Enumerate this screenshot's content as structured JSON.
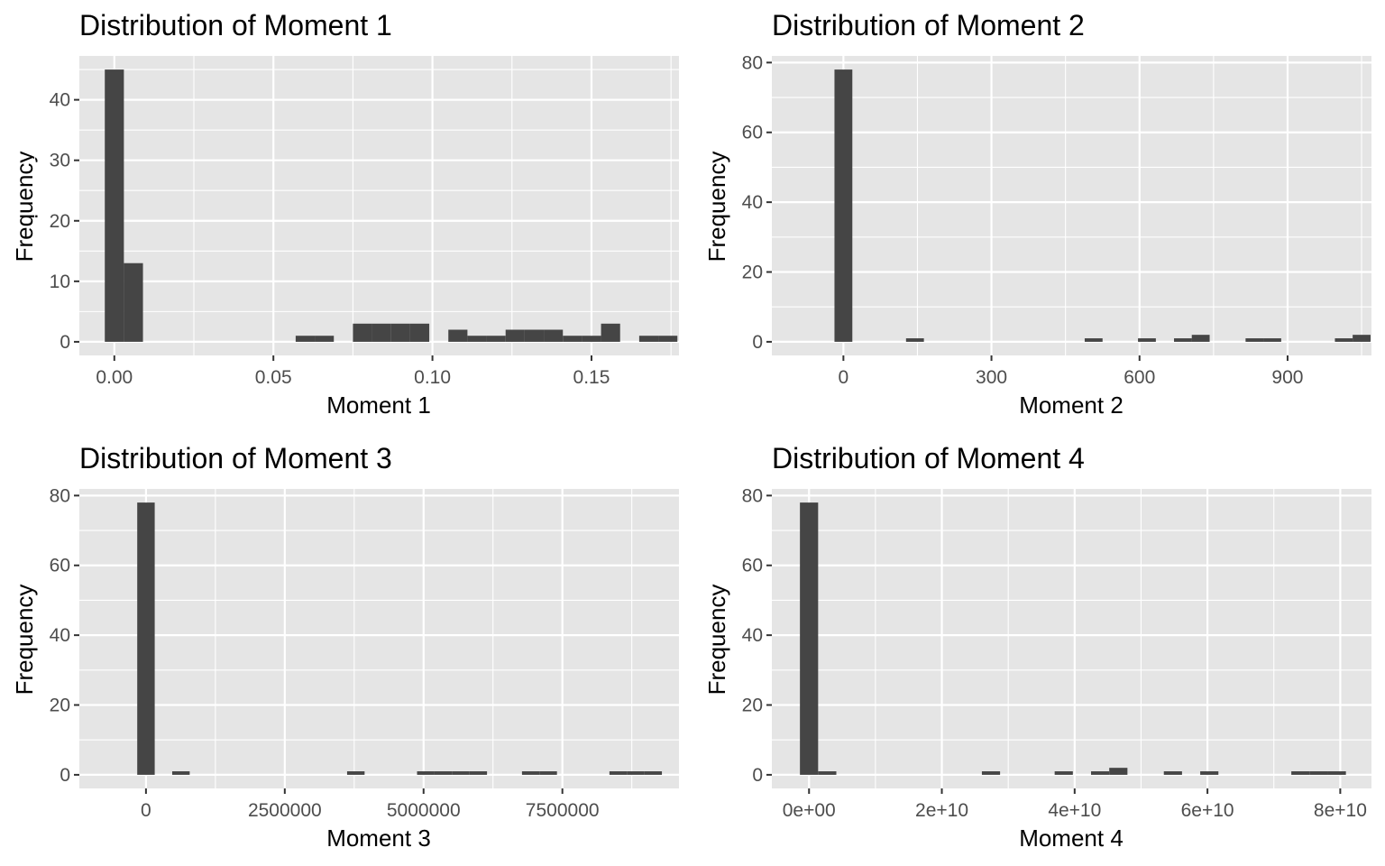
{
  "panels": [
    {
      "title": "Distribution of Moment 1",
      "xlabel": "Moment 1",
      "ylabel": "Frequency"
    },
    {
      "title": "Distribution of Moment 2",
      "xlabel": "Moment 2",
      "ylabel": "Frequency"
    },
    {
      "title": "Distribution of Moment 3",
      "xlabel": "Moment 3",
      "ylabel": "Frequency"
    },
    {
      "title": "Distribution of Moment 4",
      "xlabel": "Moment 4",
      "ylabel": "Frequency"
    }
  ],
  "colors": {
    "panel_background": "#e5e5e5",
    "bar_fill": "#454545",
    "grid": "#ffffff",
    "tick_text": "#4d4d4d"
  },
  "chart_data": [
    {
      "type": "bar",
      "title": "Distribution of Moment 1",
      "xlabel": "Moment 1",
      "ylabel": "Frequency",
      "xlim": [
        -0.011,
        0.1775
      ],
      "ylim": [
        -2.25,
        47.25
      ],
      "x_ticks": [
        0.0,
        0.05,
        0.1,
        0.15
      ],
      "x_tick_labels": [
        "0.00",
        "0.05",
        "0.10",
        "0.15"
      ],
      "x_minor": [
        -0.025,
        0.025,
        0.075,
        0.125,
        0.175
      ],
      "y_ticks": [
        0,
        10,
        20,
        30,
        40
      ],
      "y_tick_labels": [
        "0",
        "10",
        "20",
        "30",
        "40"
      ],
      "y_minor": [
        5,
        15,
        25,
        35,
        45
      ],
      "bin_width": 0.006,
      "bins": [
        {
          "x": 0.0,
          "count": 45
        },
        {
          "x": 0.006,
          "count": 13
        },
        {
          "x": 0.06,
          "count": 1
        },
        {
          "x": 0.066,
          "count": 1
        },
        {
          "x": 0.078,
          "count": 3
        },
        {
          "x": 0.084,
          "count": 3
        },
        {
          "x": 0.09,
          "count": 3
        },
        {
          "x": 0.096,
          "count": 3
        },
        {
          "x": 0.108,
          "count": 2
        },
        {
          "x": 0.114,
          "count": 1
        },
        {
          "x": 0.12,
          "count": 1
        },
        {
          "x": 0.126,
          "count": 2
        },
        {
          "x": 0.132,
          "count": 2
        },
        {
          "x": 0.138,
          "count": 2
        },
        {
          "x": 0.144,
          "count": 1
        },
        {
          "x": 0.15,
          "count": 1
        },
        {
          "x": 0.156,
          "count": 3
        },
        {
          "x": 0.168,
          "count": 1
        },
        {
          "x": 0.174,
          "count": 1
        }
      ]
    },
    {
      "type": "bar",
      "title": "Distribution of Moment 2",
      "xlabel": "Moment 2",
      "ylabel": "Frequency",
      "xlim": [
        -145,
        1070
      ],
      "ylim": [
        -3.9,
        81.9
      ],
      "x_ticks": [
        0,
        300,
        600,
        900
      ],
      "x_tick_labels": [
        "0",
        "300",
        "600",
        "900"
      ],
      "x_minor": [
        150,
        450,
        750,
        1050
      ],
      "y_ticks": [
        0,
        20,
        40,
        60,
        80
      ],
      "y_tick_labels": [
        "0",
        "20",
        "40",
        "60",
        "80"
      ],
      "y_minor": [
        10,
        30,
        50,
        70
      ],
      "bin_width": 36.2,
      "bins": [
        {
          "x": 0,
          "count": 78
        },
        {
          "x": 145,
          "count": 1
        },
        {
          "x": 507,
          "count": 1
        },
        {
          "x": 615,
          "count": 1
        },
        {
          "x": 688,
          "count": 1
        },
        {
          "x": 724,
          "count": 2
        },
        {
          "x": 833,
          "count": 1
        },
        {
          "x": 869,
          "count": 1
        },
        {
          "x": 1014,
          "count": 1
        },
        {
          "x": 1050,
          "count": 2
        }
      ]
    },
    {
      "type": "bar",
      "title": "Distribution of Moment 3",
      "xlabel": "Moment 3",
      "ylabel": "Frequency",
      "xlim": [
        -1200000,
        9600000
      ],
      "ylim": [
        -3.9,
        81.9
      ],
      "x_ticks": [
        0,
        2500000,
        5000000,
        7500000
      ],
      "x_tick_labels": [
        "0",
        "2500000",
        "5000000",
        "7500000"
      ],
      "x_minor": [
        1250000,
        3750000,
        6250000,
        8750000
      ],
      "y_ticks": [
        0,
        20,
        40,
        60,
        80
      ],
      "y_tick_labels": [
        "0",
        "20",
        "40",
        "60",
        "80"
      ],
      "y_minor": [
        10,
        30,
        50,
        70
      ],
      "bin_width": 315000,
      "bins": [
        {
          "x": 0,
          "count": 78
        },
        {
          "x": 630000,
          "count": 1
        },
        {
          "x": 3780000,
          "count": 1
        },
        {
          "x": 5040000,
          "count": 1
        },
        {
          "x": 5355000,
          "count": 1
        },
        {
          "x": 5670000,
          "count": 1
        },
        {
          "x": 5985000,
          "count": 1
        },
        {
          "x": 6930000,
          "count": 1
        },
        {
          "x": 7245000,
          "count": 1
        },
        {
          "x": 8505000,
          "count": 1
        },
        {
          "x": 8820000,
          "count": 1
        },
        {
          "x": 9135000,
          "count": 1
        }
      ]
    },
    {
      "type": "bar",
      "title": "Distribution of Moment 4",
      "xlabel": "Moment 4",
      "ylabel": "Frequency",
      "xlim": [
        -5600000000,
        84700000000
      ],
      "ylim": [
        -3.9,
        81.9
      ],
      "x_ticks": [
        0,
        20000000000,
        40000000000,
        60000000000,
        80000000000
      ],
      "x_tick_labels": [
        "0e+00",
        "2e+10",
        "4e+10",
        "6e+10",
        "8e+10"
      ],
      "x_minor": [
        10000000000,
        30000000000,
        50000000000,
        70000000000
      ],
      "y_ticks": [
        0,
        20,
        40,
        60,
        80
      ],
      "y_tick_labels": [
        "0",
        "20",
        "40",
        "60",
        "80"
      ],
      "y_minor": [
        10,
        30,
        50,
        70
      ],
      "bin_width": 2740000000,
      "bins": [
        {
          "x": 0,
          "count": 78
        },
        {
          "x": 2740000000,
          "count": 1
        },
        {
          "x": 27400000000,
          "count": 1
        },
        {
          "x": 38360000000,
          "count": 1
        },
        {
          "x": 43840000000,
          "count": 1
        },
        {
          "x": 46580000000,
          "count": 2
        },
        {
          "x": 54800000000,
          "count": 1
        },
        {
          "x": 60280000000,
          "count": 1
        },
        {
          "x": 74000000000,
          "count": 1
        },
        {
          "x": 76740000000,
          "count": 1
        },
        {
          "x": 79480000000,
          "count": 1
        }
      ]
    }
  ]
}
